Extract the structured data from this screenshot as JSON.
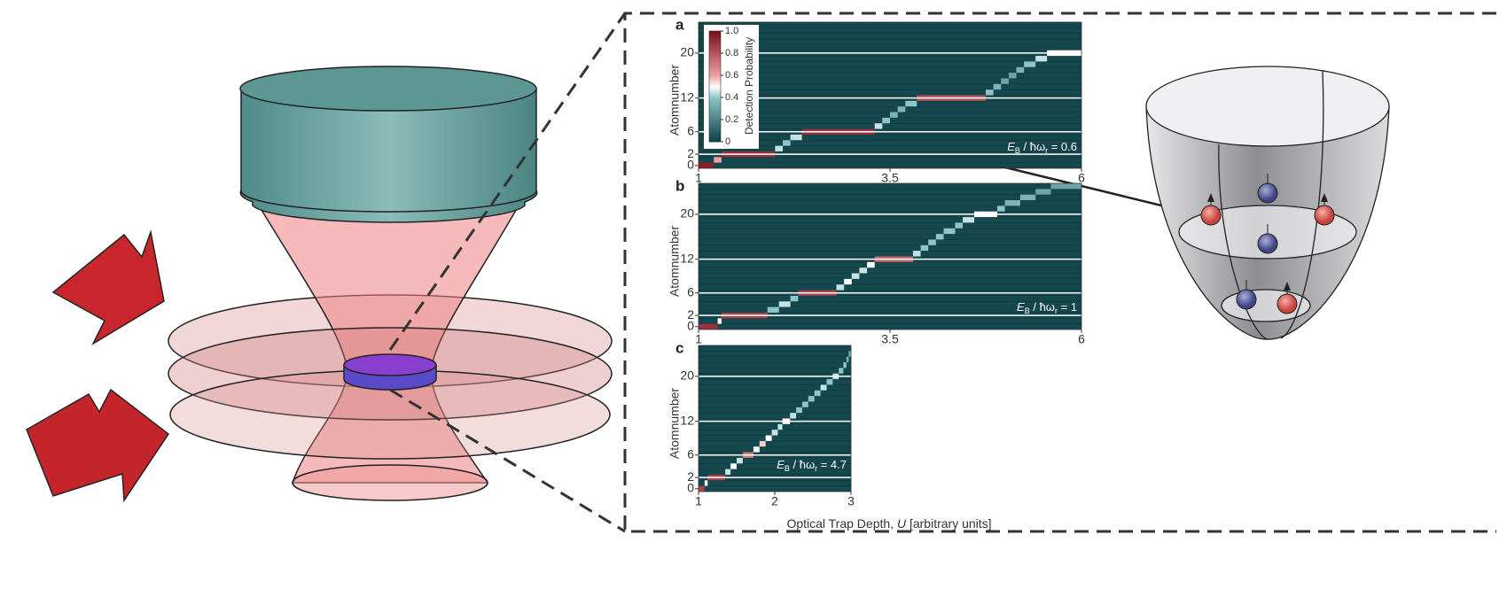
{
  "figure": {
    "colorbar": {
      "label": "Detection Probability",
      "lim": [
        0,
        1
      ],
      "ticks": [
        0,
        0.2,
        0.4,
        0.6,
        {
          "value": 0.8,
          "label": "0.8"
        },
        {
          "value": 1,
          "label": "1.0"
        }
      ]
    },
    "y_label": "Atomnumber",
    "x_label": {
      "main": "Optical Trap Depth, ",
      "symbol": "U",
      "units": " [arbitrary units]"
    },
    "panels": [
      {
        "letter": "a",
        "xlim": [
          1,
          6
        ],
        "xticks": [
          1,
          3.5,
          6
        ],
        "ylim": [
          -0.5,
          25.5
        ],
        "yticks": [
          0,
          2,
          6,
          12,
          20
        ],
        "shell_lines": [
          2,
          6,
          12,
          20
        ],
        "annotation": {
          "e": "E",
          "e_sub": "B",
          "mid": " / ħω",
          "mid_sub": "r",
          "rhs": " = 0.6"
        },
        "segments": [
          [
            0,
            1.0,
            1.2,
            0.95
          ],
          [
            1,
            1.2,
            1.3,
            0.6
          ],
          [
            2,
            1.3,
            2.0,
            0.9
          ],
          [
            3,
            2.0,
            2.1,
            0.45
          ],
          [
            4,
            2.1,
            2.2,
            0.4
          ],
          [
            5,
            2.2,
            2.35,
            0.45
          ],
          [
            6,
            2.35,
            3.3,
            0.9
          ],
          [
            7,
            3.3,
            3.4,
            0.45
          ],
          [
            8,
            3.4,
            3.5,
            0.4
          ],
          [
            9,
            3.5,
            3.6,
            0.35
          ],
          [
            10,
            3.6,
            3.7,
            0.35
          ],
          [
            11,
            3.7,
            3.85,
            0.4
          ],
          [
            12,
            3.85,
            4.75,
            0.8
          ],
          [
            13,
            4.75,
            4.85,
            0.4
          ],
          [
            14,
            4.85,
            4.95,
            0.35
          ],
          [
            15,
            4.95,
            5.05,
            0.3
          ],
          [
            16,
            5.05,
            5.15,
            0.3
          ],
          [
            17,
            5.15,
            5.25,
            0.35
          ],
          [
            18,
            5.25,
            5.4,
            0.4
          ],
          [
            19,
            5.4,
            5.55,
            0.45
          ],
          [
            20,
            5.55,
            6.0,
            0.5
          ]
        ]
      },
      {
        "letter": "b",
        "xlim": [
          1,
          6
        ],
        "xticks": [
          1,
          3.5,
          6
        ],
        "ylim": [
          -0.5,
          25.5
        ],
        "yticks": [
          0,
          2,
          6,
          12,
          20
        ],
        "shell_lines": [
          2,
          6,
          12,
          20
        ],
        "annotation": {
          "e": "E",
          "e_sub": "B",
          "mid": " / ħω",
          "mid_sub": "r",
          "rhs": " = 1"
        },
        "segments": [
          [
            0,
            1.0,
            1.25,
            0.9
          ],
          [
            1,
            1.25,
            1.3,
            0.5
          ],
          [
            2,
            1.3,
            1.9,
            0.85
          ],
          [
            3,
            1.9,
            2.05,
            0.4
          ],
          [
            4,
            2.05,
            2.2,
            0.45
          ],
          [
            5,
            2.2,
            2.3,
            0.4
          ],
          [
            6,
            2.3,
            2.8,
            0.85
          ],
          [
            7,
            2.8,
            2.9,
            0.45
          ],
          [
            8,
            2.9,
            3.0,
            0.5
          ],
          [
            9,
            3.0,
            3.1,
            0.45
          ],
          [
            10,
            3.1,
            3.2,
            0.45
          ],
          [
            11,
            3.2,
            3.3,
            0.5
          ],
          [
            12,
            3.3,
            3.8,
            0.75
          ],
          [
            13,
            3.8,
            3.9,
            0.45
          ],
          [
            14,
            3.9,
            4.0,
            0.4
          ],
          [
            15,
            4.0,
            4.1,
            0.4
          ],
          [
            16,
            4.1,
            4.2,
            0.4
          ],
          [
            17,
            4.2,
            4.35,
            0.4
          ],
          [
            18,
            4.35,
            4.45,
            0.4
          ],
          [
            19,
            4.45,
            4.6,
            0.45
          ],
          [
            20,
            4.6,
            4.9,
            0.5
          ],
          [
            21,
            4.9,
            5.0,
            0.4
          ],
          [
            22,
            5.0,
            5.2,
            0.35
          ],
          [
            23,
            5.2,
            5.4,
            0.35
          ],
          [
            24,
            5.4,
            5.6,
            0.3
          ],
          [
            25,
            5.6,
            6.0,
            0.3
          ]
        ]
      },
      {
        "letter": "c",
        "xlim": [
          1,
          3
        ],
        "xticks": [
          1,
          2,
          3
        ],
        "ylim": [
          -0.5,
          25.5
        ],
        "yticks": [
          0,
          2,
          6,
          12,
          20
        ],
        "shell_lines": [
          2,
          6,
          12,
          20
        ],
        "annotation": {
          "e": "E",
          "e_sub": "B",
          "mid": " / ħω",
          "mid_sub": "r",
          "rhs": " = 4.7"
        },
        "segments": [
          [
            0,
            1.0,
            1.08,
            0.85
          ],
          [
            1,
            1.08,
            1.12,
            0.5
          ],
          [
            2,
            1.12,
            1.35,
            0.85
          ],
          [
            3,
            1.35,
            1.42,
            0.45
          ],
          [
            4,
            1.42,
            1.5,
            0.5
          ],
          [
            5,
            1.5,
            1.58,
            0.45
          ],
          [
            6,
            1.58,
            1.72,
            0.7
          ],
          [
            7,
            1.72,
            1.8,
            0.5
          ],
          [
            8,
            1.8,
            1.88,
            0.55
          ],
          [
            9,
            1.88,
            1.96,
            0.5
          ],
          [
            10,
            1.96,
            2.04,
            0.45
          ],
          [
            11,
            2.04,
            2.1,
            0.45
          ],
          [
            12,
            2.1,
            2.2,
            0.5
          ],
          [
            13,
            2.2,
            2.28,
            0.45
          ],
          [
            14,
            2.28,
            2.36,
            0.4
          ],
          [
            15,
            2.36,
            2.44,
            0.4
          ],
          [
            16,
            2.44,
            2.52,
            0.4
          ],
          [
            17,
            2.52,
            2.6,
            0.4
          ],
          [
            18,
            2.6,
            2.68,
            0.45
          ],
          [
            19,
            2.68,
            2.76,
            0.4
          ],
          [
            20,
            2.76,
            2.84,
            0.45
          ],
          [
            21,
            2.84,
            2.9,
            0.4
          ],
          [
            22,
            2.9,
            2.94,
            0.4
          ],
          [
            23,
            2.94,
            2.97,
            0.35
          ],
          [
            24,
            2.97,
            3.0,
            0.35
          ]
        ]
      }
    ]
  }
}
